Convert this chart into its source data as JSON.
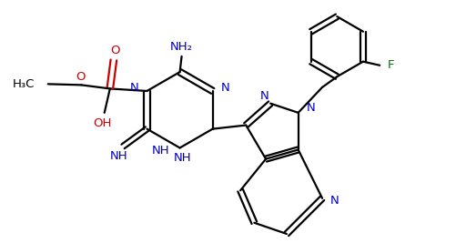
{
  "bg_color": "#ffffff",
  "bond_color": "#000000",
  "n_color": "#0000cc",
  "o_color": "#cc0000",
  "f_color": "#007700",
  "bond_width": 1.6,
  "figsize": [
    5.12,
    2.67
  ],
  "dpi": 100,
  "xlim": [
    0,
    10
  ],
  "ylim": [
    0,
    5.2
  ]
}
